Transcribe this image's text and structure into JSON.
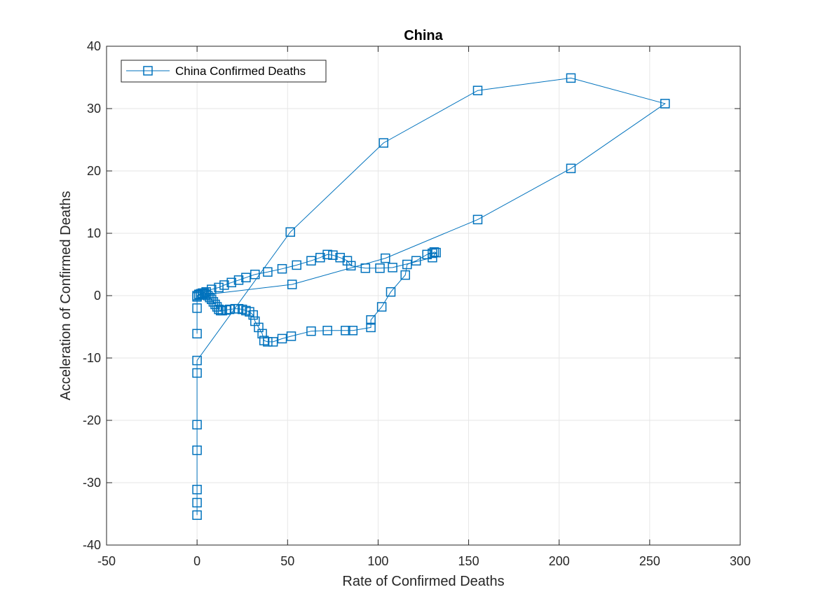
{
  "chart_data": {
    "type": "line",
    "title": "China",
    "xlabel": "Rate of Confirmed Deaths",
    "ylabel": "Acceleration of Confirmed Deaths",
    "xlim": [
      -50,
      300
    ],
    "ylim": [
      -40,
      40
    ],
    "xticks": [
      -50,
      0,
      50,
      100,
      150,
      200,
      250,
      300
    ],
    "yticks": [
      -40,
      -30,
      -20,
      -10,
      0,
      10,
      20,
      30,
      40
    ],
    "grid": true,
    "legend_position": "top-left",
    "marker": "square",
    "colors": {
      "series": "#0072BD",
      "grid": "#e6e6e6",
      "axis": "#262626"
    },
    "series": [
      {
        "name": "China Confirmed Deaths",
        "points": [
          [
            0,
            -35.2
          ],
          [
            0,
            -33.2
          ],
          [
            0,
            -31.1
          ],
          [
            0,
            -24.8
          ],
          [
            0,
            -20.7
          ],
          [
            0,
            -12.4
          ],
          [
            0,
            -10.4
          ],
          [
            51.5,
            10.2
          ],
          [
            103,
            24.5
          ],
          [
            155,
            32.9
          ],
          [
            206.5,
            34.9
          ],
          [
            258.5,
            30.8
          ],
          [
            206.5,
            20.4
          ],
          [
            155,
            12.2
          ],
          [
            104,
            6.0
          ],
          [
            52.5,
            1.8
          ],
          [
            0,
            0
          ],
          [
            1,
            0.2
          ],
          [
            2,
            0.3
          ],
          [
            3,
            0.4
          ],
          [
            4,
            0.4
          ],
          [
            5,
            0.2
          ],
          [
            6,
            0
          ],
          [
            7,
            -0.3
          ],
          [
            8,
            -0.6
          ],
          [
            9,
            -1.0
          ],
          [
            10,
            -1.4
          ],
          [
            11,
            -1.8
          ],
          [
            12,
            -2.2
          ],
          [
            13,
            -2.4
          ],
          [
            14,
            -2.4
          ],
          [
            16,
            -2.3
          ],
          [
            18,
            -2.2
          ],
          [
            21,
            -2.1
          ],
          [
            23,
            -2.1
          ],
          [
            25,
            -2.2
          ],
          [
            27,
            -2.4
          ],
          [
            29,
            -2.6
          ],
          [
            31,
            -3.1
          ],
          [
            32,
            -4.1
          ],
          [
            34,
            -5.1
          ],
          [
            36,
            -6.1
          ],
          [
            37,
            -7.2
          ],
          [
            39,
            -7.4
          ],
          [
            42,
            -7.4
          ],
          [
            47,
            -6.9
          ],
          [
            52,
            -6.5
          ],
          [
            63,
            -5.7
          ],
          [
            72,
            -5.6
          ],
          [
            82,
            -5.6
          ],
          [
            86,
            -5.6
          ],
          [
            96,
            -5.1
          ],
          [
            96,
            -3.9
          ],
          [
            102,
            -1.8
          ],
          [
            107,
            0.6
          ],
          [
            115,
            3.3
          ],
          [
            116,
            5.0
          ],
          [
            121,
            5.6
          ],
          [
            127,
            6.6
          ],
          [
            130,
            6.8
          ],
          [
            131,
            7.0
          ],
          [
            132,
            6.9
          ],
          [
            130,
            6.1
          ],
          [
            108,
            4.5
          ],
          [
            101,
            4.4
          ],
          [
            93,
            4.4
          ],
          [
            85,
            4.8
          ],
          [
            83,
            5.6
          ],
          [
            79,
            6.1
          ],
          [
            75,
            6.5
          ],
          [
            72,
            6.6
          ],
          [
            68,
            6.1
          ],
          [
            63,
            5.6
          ],
          [
            55,
            4.9
          ],
          [
            47,
            4.3
          ],
          [
            39,
            3.8
          ],
          [
            32,
            3.4
          ],
          [
            27,
            2.9
          ],
          [
            23,
            2.5
          ],
          [
            19,
            2.1
          ],
          [
            15,
            1.7
          ],
          [
            12,
            1.3
          ],
          [
            8,
            1.0
          ],
          [
            5,
            0.6
          ],
          [
            3,
            0.3
          ],
          [
            1,
            0.1
          ],
          [
            0,
            -0.2
          ],
          [
            0,
            -2.0
          ],
          [
            0,
            -6.1
          ]
        ]
      }
    ]
  }
}
